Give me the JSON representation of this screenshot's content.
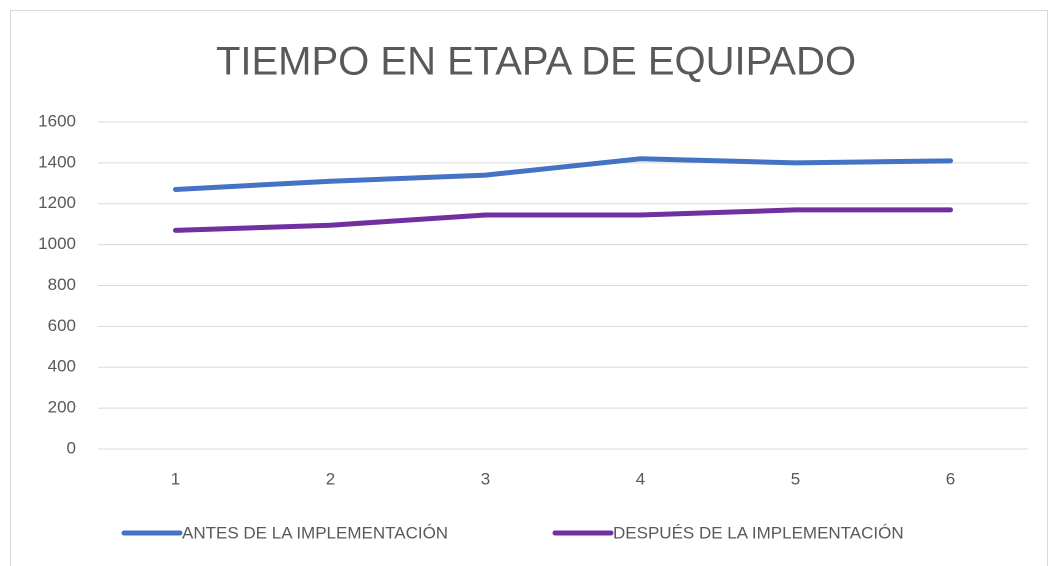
{
  "chart_data": {
    "type": "line",
    "title": "TIEMPO EN ETAPA DE EQUIPADO",
    "categories": [
      "1",
      "2",
      "3",
      "4",
      "5",
      "6"
    ],
    "series": [
      {
        "name": "ANTES DE LA IMPLEMENTACIÓN",
        "color": "#4472c4",
        "values": [
          1270,
          1310,
          1340,
          1420,
          1400,
          1410
        ]
      },
      {
        "name": "DESPUÉS DE LA IMPLEMENTACIÓN",
        "color": "#7030a0",
        "values": [
          1070,
          1095,
          1145,
          1145,
          1170,
          1170
        ]
      }
    ],
    "ylim": [
      0,
      1600
    ],
    "yticks": [
      0,
      200,
      400,
      600,
      800,
      1000,
      1200,
      1400,
      1600
    ],
    "grid": true,
    "legend": "bottom"
  }
}
